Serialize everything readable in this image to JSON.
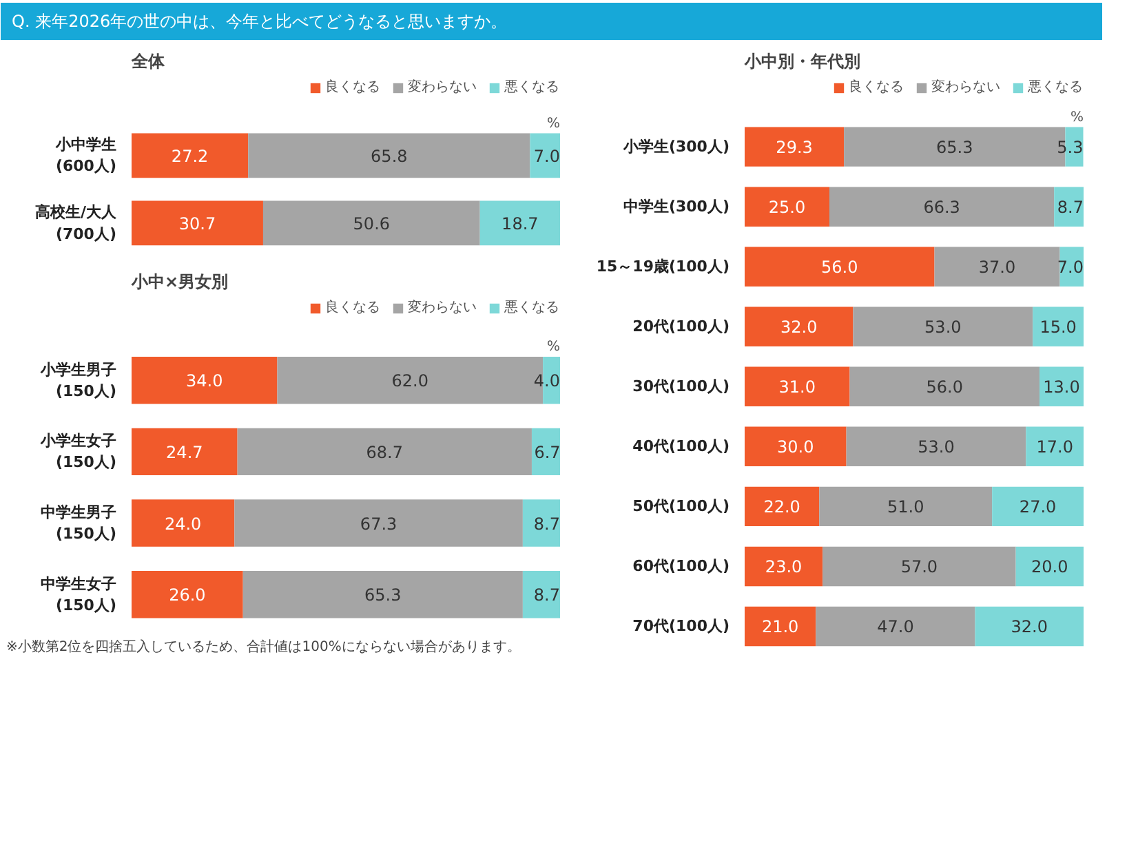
{
  "chart_data": [
    {
      "type": "bar",
      "orientation": "horizontal",
      "stacked": true,
      "title": "Q. 来年2026年の世の中は、今年と比べてどうなると思いますか。",
      "subtitle": "全体",
      "categories": [
        "小中学生\n(600人)",
        "高校生/大人\n(700人)"
      ],
      "series": [
        {
          "name": "良くなる",
          "color": "#f15a2b",
          "values": [
            27.2,
            30.7
          ],
          "value_labels": [
            "27.2",
            "30.7"
          ]
        },
        {
          "name": "変わらない",
          "color": "#a5a5a5",
          "values": [
            65.8,
            50.6
          ],
          "value_labels": [
            "65.8",
            "50.6"
          ]
        },
        {
          "name": "悪くなる",
          "color": "#7dd8d8",
          "values": [
            7.0,
            18.7
          ],
          "value_labels": [
            "7.0",
            "18.7"
          ]
        }
      ],
      "xlim": [
        0,
        100
      ],
      "legend": "top right",
      "tick_labels": "y",
      "annotations": [
        "%"
      ]
    },
    {
      "type": "bar",
      "orientation": "horizontal",
      "stacked": true,
      "title": "小中×男女別",
      "categories": [
        "小学生男子\n(150人)",
        "小学生女子\n(150人)",
        "中学生男子\n(150人)",
        "中学生女子\n(150人)"
      ],
      "series": [
        {
          "name": "良くなる",
          "color": "#f15a2b",
          "values": [
            34.0,
            24.7,
            24.0,
            26.0
          ],
          "value_labels": [
            "34.0",
            "24.7",
            "24.0",
            "26.0"
          ]
        },
        {
          "name": "変わらない",
          "color": "#a5a5a5",
          "values": [
            62.0,
            68.7,
            67.3,
            65.3
          ],
          "value_labels": [
            "62.0",
            "68.7",
            "67.3",
            "65.3"
          ]
        },
        {
          "name": "悪くなる",
          "color": "#7dd8d8",
          "values": [
            4.0,
            6.7,
            8.7,
            8.7
          ],
          "value_labels": [
            "4.0",
            "6.7",
            "8.7",
            "8.7"
          ]
        }
      ],
      "xlim": [
        0,
        100
      ],
      "legend": "top right",
      "tick_labels": "y",
      "annotations": [
        "%",
        "※小数第2位を四捨五入しているため、合計値は100%にならない場合があります。"
      ]
    },
    {
      "type": "bar",
      "orientation": "horizontal",
      "stacked": true,
      "title": "小中別・年代別",
      "categories": [
        "小学生(300人)",
        "中学生(300人)",
        "15～19歳(100人)",
        "20代(100人)",
        "30代(100人)",
        "40代(100人)",
        "50代(100人)",
        "60代(100人)",
        "70代(100人)"
      ],
      "series": [
        {
          "name": "良くなる",
          "color": "#f15a2b",
          "values": [
            29.3,
            25.0,
            56.0,
            32.0,
            31.0,
            30.0,
            22.0,
            23.0,
            21.0
          ],
          "value_labels": [
            "29.3",
            "25.0",
            "56.0",
            "32.0",
            "31.0",
            "30.0",
            "22.0",
            "23.0",
            "21.0"
          ]
        },
        {
          "name": "変わらない",
          "color": "#a5a5a5",
          "values": [
            65.3,
            66.3,
            37.0,
            53.0,
            56.0,
            53.0,
            51.0,
            57.0,
            47.0
          ],
          "value_labels": [
            "65.3",
            "66.3",
            "37.0",
            "53.0",
            "56.0",
            "53.0",
            "51.0",
            "57.0",
            "47.0"
          ]
        },
        {
          "name": "悪くなる",
          "color": "#7dd8d8",
          "values": [
            5.3,
            8.7,
            7.0,
            15.0,
            13.0,
            17.0,
            27.0,
            20.0,
            32.0
          ],
          "value_labels": [
            "5.3",
            "8.7",
            "7.0",
            "15.0",
            "13.0",
            "17.0",
            "27.0",
            "20.0",
            "32.0"
          ]
        }
      ],
      "xlim": [
        0,
        100
      ],
      "legend": "top right",
      "tick_labels": "y",
      "annotations": [
        "%"
      ]
    }
  ]
}
